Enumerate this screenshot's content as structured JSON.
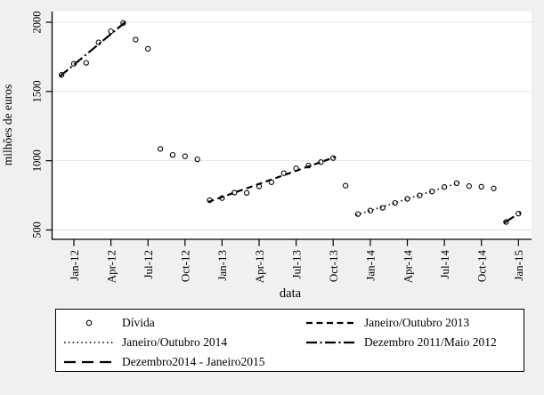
{
  "figure": {
    "background_color": "#f0f0f0",
    "plot_background_color": "#ffffff",
    "grid_color": "#e4e4e4",
    "axis_color": "#000000",
    "marker_color": "#000000"
  },
  "chart_data": {
    "type": "scatter",
    "title": "",
    "xlabel": "data",
    "ylabel": "milhões de euros",
    "y_ticks": [
      500,
      1000,
      1500,
      2000
    ],
    "ylim": [
      440,
      2075
    ],
    "x_tick_labels": [
      "Jan-12",
      "Apr-12",
      "Jul-12",
      "Oct-12",
      "Jan-13",
      "Apr-13",
      "Jul-13",
      "Oct-13",
      "Jan-14",
      "Apr-14",
      "Jul-14",
      "Oct-14",
      "Jan-15"
    ],
    "grid": "horizontal-only",
    "legend_position": "bottom-box",
    "series": [
      {
        "name": "Dívida",
        "marker": "hollow-circle",
        "months": [
          "Dec-11",
          "Jan-12",
          "Feb-12",
          "Mar-12",
          "Apr-12",
          "May-12",
          "Jun-12",
          "Jul-12",
          "Aug-12",
          "Sep-12",
          "Oct-12",
          "Nov-12",
          "Dec-12",
          "Jan-13",
          "Feb-13",
          "Mar-13",
          "Apr-13",
          "May-13",
          "Jun-13",
          "Jul-13",
          "Aug-13",
          "Sep-13",
          "Oct-13",
          "Nov-13",
          "Dec-13",
          "Jan-14",
          "Feb-14",
          "Mar-14",
          "Apr-14",
          "May-14",
          "Jun-14",
          "Jul-14",
          "Aug-14",
          "Sep-14",
          "Oct-14",
          "Nov-14",
          "Dec-14",
          "Jan-15"
        ],
        "values": [
          1620,
          1700,
          1707,
          1855,
          1935,
          1995,
          1875,
          1808,
          1085,
          1042,
          1032,
          1010,
          715,
          730,
          770,
          768,
          815,
          845,
          910,
          945,
          965,
          990,
          1020,
          820,
          615,
          640,
          660,
          695,
          725,
          750,
          778,
          810,
          838,
          817,
          812,
          800,
          558,
          618
        ]
      }
    ],
    "fit_lines": [
      {
        "name": "Dezembro 2011/Maio 2012",
        "style": "dashdot",
        "from_month": "Dec-11",
        "to_month": "May-12",
        "from_value": 1608,
        "to_value": 2003
      },
      {
        "name": "Janeiro/Outubro 2013",
        "style": "dashed",
        "from_month": "Dec-12",
        "to_month": "Oct-13",
        "from_value": 702,
        "to_value": 1028
      },
      {
        "name": "Janeiro/Outubro 2014",
        "style": "dotted",
        "from_month": "Dec-13",
        "to_month": "Aug-14",
        "from_value": 608,
        "to_value": 842
      },
      {
        "name": "Dezembro2014 - Janeiro2015",
        "style": "longdash",
        "from_month": "Dec-14",
        "to_month": "Jan-15",
        "from_value": 552,
        "to_value": 628
      }
    ]
  },
  "legend": {
    "entries": [
      {
        "label": "Dívida",
        "symbol": "circle"
      },
      {
        "label": "Janeiro/Outubro 2013",
        "symbol": "dashed"
      },
      {
        "label": "Janeiro/Outubro 2014",
        "symbol": "dotted"
      },
      {
        "label": "Dezembro 2011/Maio 2012",
        "symbol": "dashdot"
      },
      {
        "label": "Dezembro2014 - Janeiro2015",
        "symbol": "longdash"
      }
    ]
  }
}
